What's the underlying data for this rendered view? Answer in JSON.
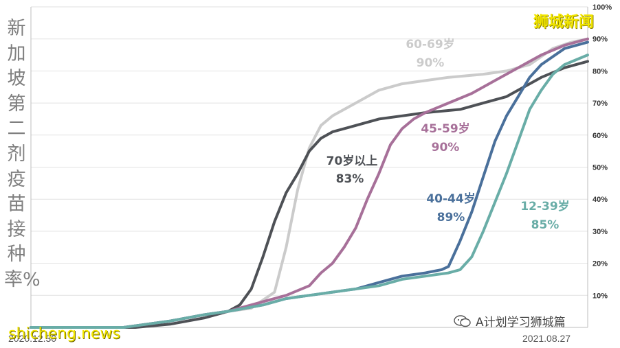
{
  "brand": "狮城新闻",
  "watermark": "shicheng.news",
  "wechat_label": "A计划学习狮城篇",
  "vertical_title": "新加坡第二剂疫苗接种率%",
  "colors": {
    "age_60_69": "#cbcbcb",
    "age_70_plus": "#4e5156",
    "age_45_59": "#a77099",
    "age_40_44": "#4a709b",
    "age_12_39": "#69ada7",
    "grid": "#e2e2e2",
    "tick_text": "#333333",
    "brand": "#f2e600"
  },
  "chart_data": {
    "type": "line",
    "title": "新加坡第二剂疫苗接种率%",
    "x_start_label": "2020.12.30",
    "x_end_label": "2021.08.27",
    "xlim": [
      0,
      240
    ],
    "ylim": [
      0,
      100
    ],
    "y_ticks": [
      "10%",
      "20%",
      "30%",
      "40%",
      "50%",
      "60%",
      "70%",
      "80%",
      "90%",
      "100%"
    ],
    "grid": true,
    "series": [
      {
        "name": "60-69岁",
        "final_label": "90%",
        "color": "#cbcbcb",
        "points": [
          [
            0,
            0
          ],
          [
            40,
            0
          ],
          [
            50,
            1
          ],
          [
            60,
            2
          ],
          [
            75,
            4
          ],
          [
            85,
            5
          ],
          [
            95,
            6
          ],
          [
            105,
            11
          ],
          [
            110,
            25
          ],
          [
            115,
            43
          ],
          [
            120,
            56
          ],
          [
            125,
            63
          ],
          [
            130,
            66
          ],
          [
            140,
            70
          ],
          [
            150,
            74
          ],
          [
            160,
            76
          ],
          [
            170,
            77
          ],
          [
            180,
            78
          ],
          [
            195,
            79
          ],
          [
            205,
            80
          ],
          [
            215,
            82
          ],
          [
            225,
            87
          ],
          [
            233,
            89
          ],
          [
            240,
            90
          ]
        ]
      },
      {
        "name": "70岁以上",
        "final_label": "83%",
        "color": "#4e5156",
        "points": [
          [
            0,
            0
          ],
          [
            45,
            0
          ],
          [
            60,
            1
          ],
          [
            75,
            3
          ],
          [
            85,
            5
          ],
          [
            90,
            7
          ],
          [
            95,
            12
          ],
          [
            100,
            22
          ],
          [
            105,
            33
          ],
          [
            110,
            42
          ],
          [
            115,
            48
          ],
          [
            120,
            55
          ],
          [
            125,
            59
          ],
          [
            130,
            61
          ],
          [
            140,
            63
          ],
          [
            150,
            65
          ],
          [
            160,
            66
          ],
          [
            170,
            67
          ],
          [
            185,
            68
          ],
          [
            195,
            70
          ],
          [
            205,
            72
          ],
          [
            210,
            74
          ],
          [
            215,
            76
          ],
          [
            220,
            78
          ],
          [
            230,
            81
          ],
          [
            240,
            83
          ]
        ]
      },
      {
        "name": "45-59岁",
        "final_label": "90%",
        "color": "#a77099",
        "points": [
          [
            0,
            0
          ],
          [
            40,
            0
          ],
          [
            50,
            1
          ],
          [
            60,
            2
          ],
          [
            75,
            4
          ],
          [
            85,
            5
          ],
          [
            100,
            8
          ],
          [
            110,
            10
          ],
          [
            120,
            13
          ],
          [
            125,
            17
          ],
          [
            130,
            20
          ],
          [
            135,
            25
          ],
          [
            140,
            31
          ],
          [
            145,
            40
          ],
          [
            150,
            48
          ],
          [
            155,
            57
          ],
          [
            160,
            62
          ],
          [
            165,
            65
          ],
          [
            170,
            67
          ],
          [
            180,
            70
          ],
          [
            190,
            73
          ],
          [
            200,
            77
          ],
          [
            210,
            81
          ],
          [
            220,
            85
          ],
          [
            230,
            88
          ],
          [
            240,
            90
          ]
        ]
      },
      {
        "name": "40-44岁",
        "final_label": "89%",
        "color": "#4a709b",
        "points": [
          [
            0,
            0
          ],
          [
            40,
            0
          ],
          [
            50,
            1
          ],
          [
            60,
            2
          ],
          [
            75,
            4
          ],
          [
            85,
            5
          ],
          [
            100,
            7
          ],
          [
            110,
            9
          ],
          [
            120,
            10
          ],
          [
            130,
            11
          ],
          [
            140,
            12
          ],
          [
            150,
            14
          ],
          [
            160,
            16
          ],
          [
            170,
            17
          ],
          [
            177,
            18
          ],
          [
            180,
            19
          ],
          [
            185,
            27
          ],
          [
            190,
            36
          ],
          [
            195,
            47
          ],
          [
            200,
            58
          ],
          [
            205,
            66
          ],
          [
            210,
            72
          ],
          [
            215,
            78
          ],
          [
            220,
            82
          ],
          [
            230,
            87
          ],
          [
            240,
            89
          ]
        ]
      },
      {
        "name": "12-39岁",
        "final_label": "85%",
        "color": "#69ada7",
        "points": [
          [
            0,
            0
          ],
          [
            40,
            0
          ],
          [
            50,
            1
          ],
          [
            60,
            2
          ],
          [
            75,
            4
          ],
          [
            85,
            5
          ],
          [
            100,
            7
          ],
          [
            110,
            9
          ],
          [
            120,
            10
          ],
          [
            130,
            11
          ],
          [
            140,
            12
          ],
          [
            150,
            13
          ],
          [
            160,
            15
          ],
          [
            170,
            16
          ],
          [
            180,
            17
          ],
          [
            185,
            18
          ],
          [
            190,
            22
          ],
          [
            195,
            30
          ],
          [
            200,
            39
          ],
          [
            205,
            48
          ],
          [
            210,
            58
          ],
          [
            215,
            68
          ],
          [
            220,
            74
          ],
          [
            225,
            79
          ],
          [
            230,
            82
          ],
          [
            240,
            85
          ]
        ]
      }
    ]
  }
}
